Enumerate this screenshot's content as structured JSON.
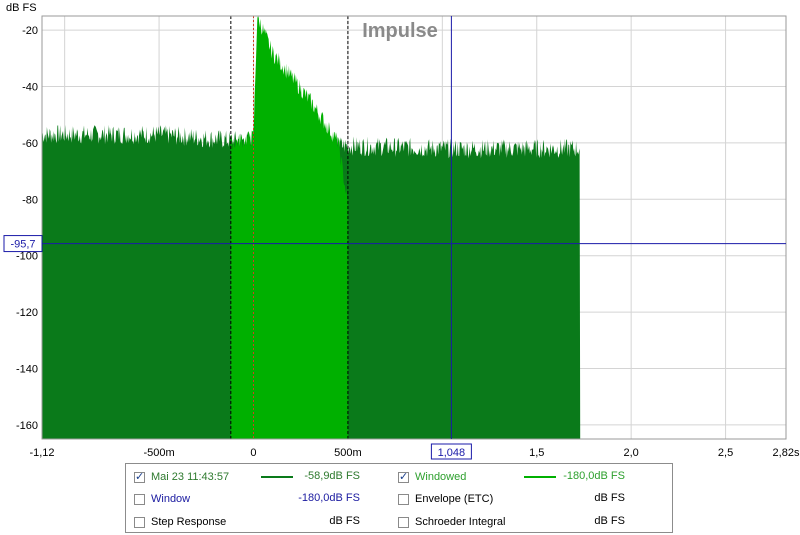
{
  "chart_data": {
    "type": "area",
    "title": "Impulse",
    "ylabel": "dB FS",
    "xlabel": "",
    "xlim": [
      -1.12,
      2.82
    ],
    "ylim": [
      -165,
      -15
    ],
    "grid": true,
    "x_tick_labels": [
      {
        "x": -1.12,
        "label": "-1,12"
      },
      {
        "x": -0.5,
        "label": "-500m"
      },
      {
        "x": 0,
        "label": "0"
      },
      {
        "x": 0.5,
        "label": "500m"
      },
      {
        "x": 1.5,
        "label": "1,5"
      },
      {
        "x": 2.0,
        "label": "2,0"
      },
      {
        "x": 2.5,
        "label": "2,5"
      },
      {
        "x": 2.82,
        "label": "2,82s"
      }
    ],
    "y_tick_labels": [
      {
        "y": -20,
        "label": "-20"
      },
      {
        "y": -40,
        "label": "-40"
      },
      {
        "y": -60,
        "label": "-60"
      },
      {
        "y": -80,
        "label": "-80"
      },
      {
        "y": -100,
        "label": "-100"
      },
      {
        "y": -120,
        "label": "-120"
      },
      {
        "y": -140,
        "label": "-140"
      },
      {
        "y": -160,
        "label": "-160"
      }
    ],
    "series": [
      {
        "name": "Mai 23 11:43:57",
        "color": "#0a7a1a",
        "x": [
          -1.12,
          -0.5,
          -0.12,
          0.0,
          0.5,
          1.0,
          1.73
        ],
        "values": [
          -57,
          -57,
          -59,
          -59,
          -61,
          -62,
          -62
        ]
      },
      {
        "name": "Windowed",
        "color": "#00b000",
        "x": [
          -0.12,
          -0.05,
          0.0,
          0.02,
          0.1,
          0.3,
          0.45,
          0.5
        ],
        "values": [
          -60,
          -59,
          -58,
          -15,
          -28,
          -45,
          -60,
          -82
        ]
      }
    ],
    "window_markers_x": [
      -0.12,
      0.5
    ],
    "reference_marker_x": 0.0,
    "cursor": {
      "x": 1.048,
      "y": -95.7,
      "x_label": "1,048",
      "y_label": "-95,7"
    }
  },
  "legend": {
    "items": [
      {
        "label": "Mai 23 11:43:57",
        "checked": true,
        "value": "-58,9dB FS",
        "color": "#0a7a1a",
        "label_color": "#2e7a2e"
      },
      {
        "label": "Windowed",
        "checked": true,
        "value": "-180,0dB FS",
        "color": "#00b000",
        "label_color": "#2ea02e"
      },
      {
        "label": "Window",
        "checked": false,
        "value": "-180,0dB FS",
        "color": "#1a1aa0",
        "label_color": "#1a1aa0"
      },
      {
        "label": "Envelope (ETC)",
        "checked": false,
        "value": "dB FS",
        "color": "#000000",
        "label_color": "#000000"
      },
      {
        "label": "Step Response",
        "checked": false,
        "value": "dB FS",
        "color": "#000000",
        "label_color": "#000000"
      },
      {
        "label": "Schroeder Integral",
        "checked": false,
        "value": "dB FS",
        "color": "#000000",
        "label_color": "#000000"
      }
    ]
  }
}
